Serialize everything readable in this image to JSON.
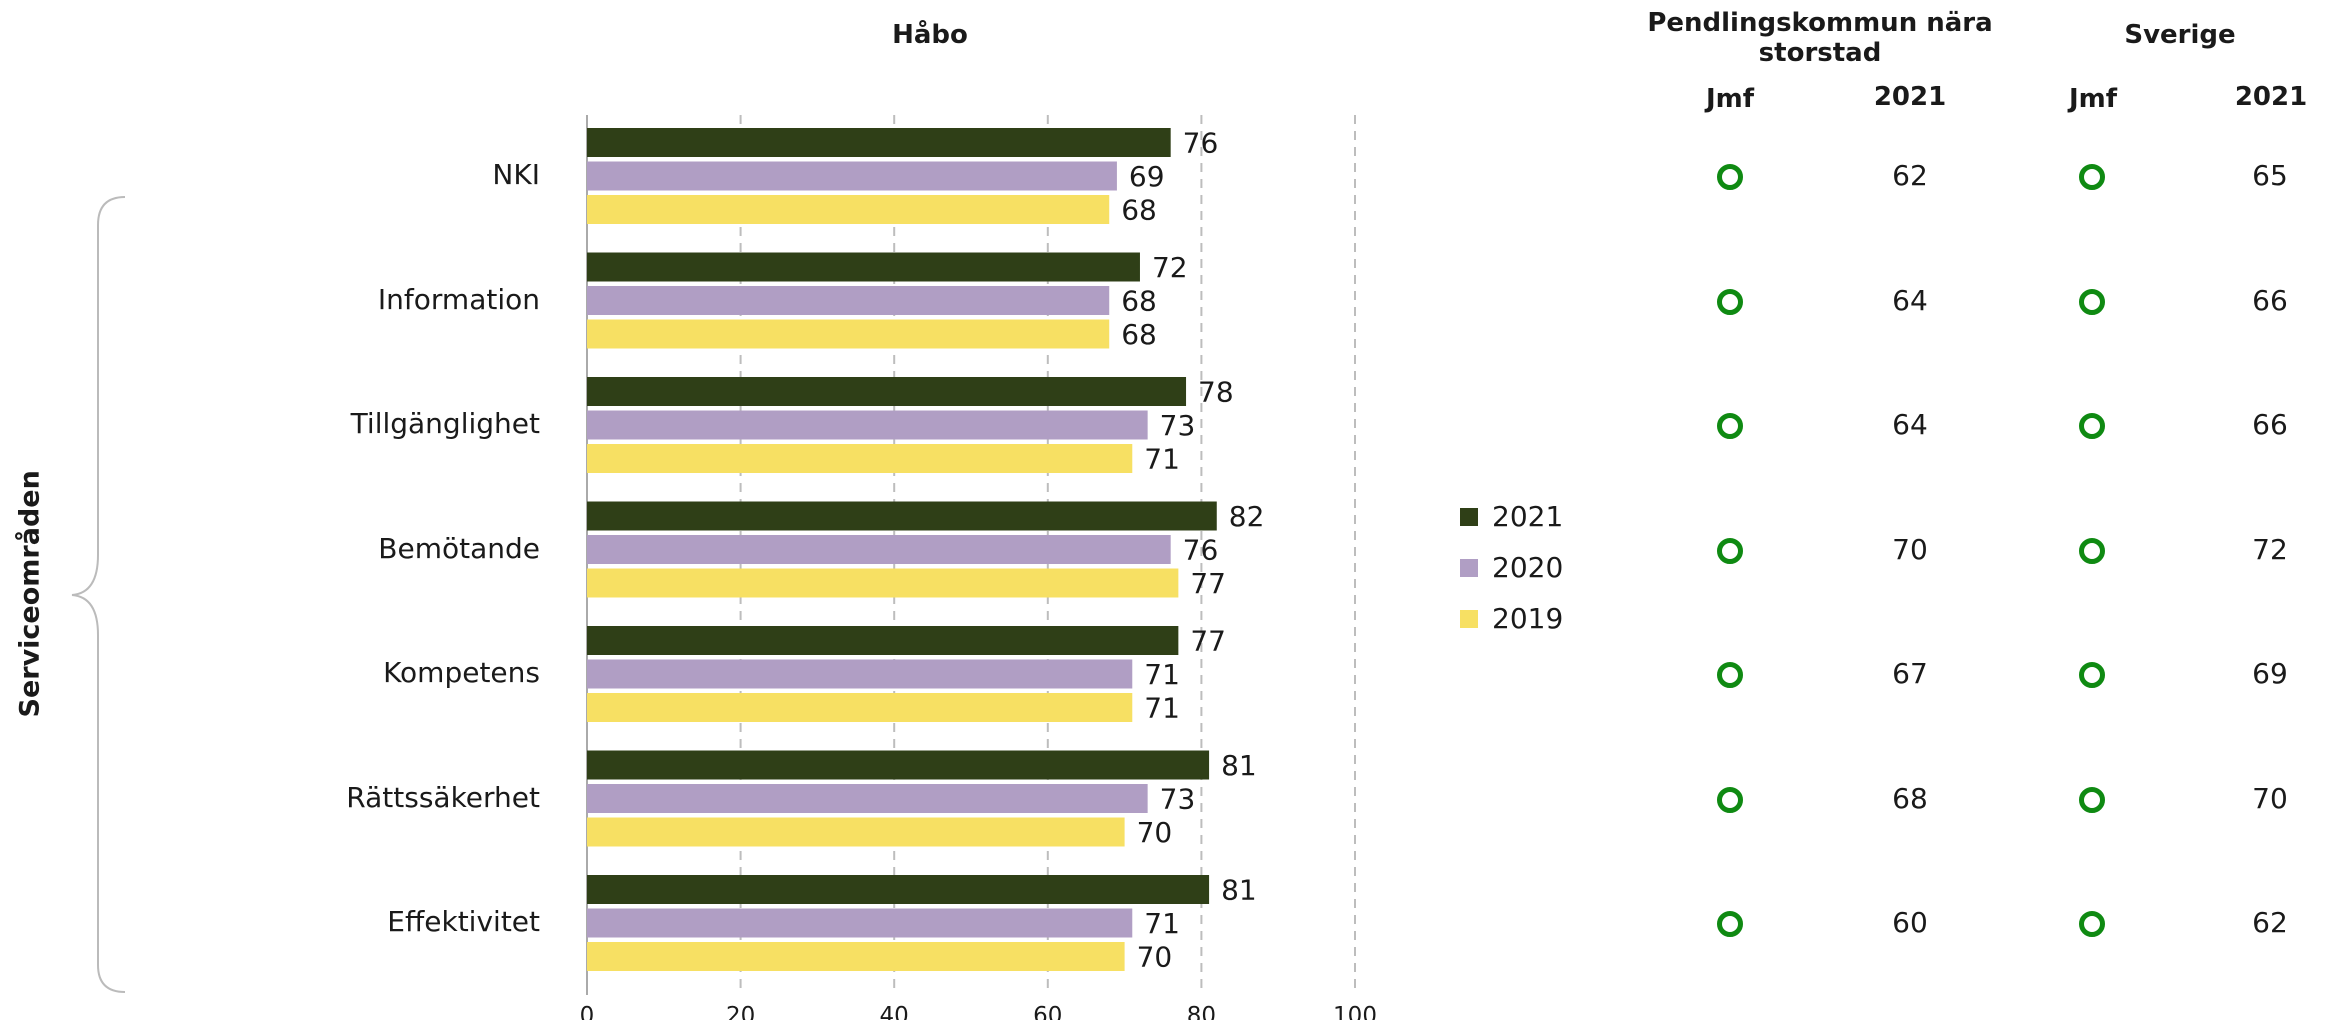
{
  "chart_data": {
    "type": "bar",
    "orientation": "horizontal",
    "title": "Håbo",
    "ylabel": "Serviceområden",
    "categories": [
      "NKI",
      "Information",
      "Tillgänglighet",
      "Bemötande",
      "Kompetens",
      "Rättssäkerhet",
      "Effektivitet"
    ],
    "series": [
      {
        "name": "2021",
        "color": "#2f3f17",
        "values": [
          76,
          72,
          78,
          82,
          77,
          81,
          81
        ]
      },
      {
        "name": "2020",
        "color": "#b09ec4",
        "values": [
          69,
          68,
          73,
          76,
          71,
          73,
          71
        ]
      },
      {
        "name": "2019",
        "color": "#f7e063",
        "values": [
          68,
          68,
          71,
          77,
          71,
          70,
          70
        ]
      }
    ],
    "xlim": [
      0,
      100
    ],
    "xticks": [
      0,
      20,
      40,
      60,
      80,
      100
    ],
    "grid": true,
    "legend_position": "right"
  },
  "comparison": {
    "groups": [
      {
        "title": "Pendlingskommun nära storstad",
        "col_jmf": "Jmf",
        "col_year": "2021",
        "jmf_icon": "green-circle-icon",
        "values": [
          "62",
          "64",
          "64",
          "70",
          "67",
          "68",
          "60"
        ]
      },
      {
        "title": "Sverige",
        "col_jmf": "Jmf",
        "col_year": "2021",
        "jmf_icon": "green-circle-icon",
        "values": [
          "65",
          "66",
          "66",
          "72",
          "69",
          "70",
          "62"
        ]
      }
    ],
    "icon_color": "#0f8a12"
  }
}
